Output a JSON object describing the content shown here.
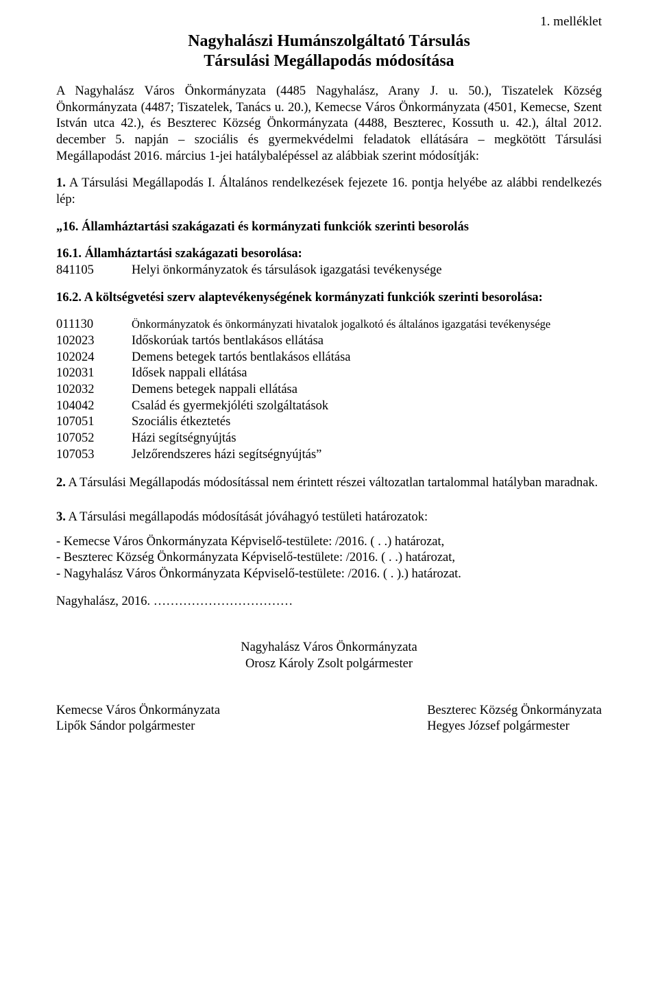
{
  "annex": "1. melléklet",
  "title_line1": "Nagyhalászi Humánszolgáltató Társulás",
  "title_line2": "Társulási Megállapodás módosítása",
  "intro": "A Nagyhalász Város Önkormányzata (4485 Nagyhalász, Arany J. u. 50.), Tiszatelek Község Önkormányzata (4487; Tiszatelek, Tanács u. 20.), Kemecse Város Önkormányzata (4501, Kemecse, Szent István utca 42.), és Beszterec Község Önkormányzata (4488, Beszterec, Kossuth u. 42.), által 2012. december 5. napján – szociális és gyermekvédelmi feladatok ellátására – megkötött Társulási Megállapodást 2016. március 1-jei hatálybalépéssel az alábbiak szerint módosítják:",
  "p1_prefix": "1.",
  "p1_text": " A Társulási Megállapodás I. Általános rendelkezések fejezete 16. pontja helyébe az alábbi rendelkezés lép:",
  "q16": "„16. Államháztartási szakágazati és kormányzati funkciók szerinti besorolás",
  "s161_head": "16.1. Államháztartási szakágazati besorolása:",
  "s161_code": "841105",
  "s161_desc": "Helyi önkormányzatok és társulások igazgatási tevékenysége",
  "s162_head_a": "16.2.  A  költségvetési  szerv  alaptevékenységének  kormányzati  funkciók  szerinti besorolása:",
  "rows": [
    {
      "code": "011130",
      "desc": "Önkormányzatok és önkormányzati hivatalok jogalkotó és általános igazgatási tevékenysége",
      "small": true
    },
    {
      "code": "102023",
      "desc": "Időskorúak tartós bentlakásos ellátása"
    },
    {
      "code": "102024",
      "desc": "Demens betegek tartós bentlakásos ellátása"
    },
    {
      "code": "102031",
      "desc": "Idősek nappali ellátása"
    },
    {
      "code": "102032",
      "desc": "Demens betegek nappali ellátása"
    },
    {
      "code": "104042",
      "desc": "Család és gyermekjóléti szolgáltatások"
    },
    {
      "code": "107051",
      "desc": "Szociális étkeztetés"
    },
    {
      "code": "107052",
      "desc": "Házi segítségnyújtás"
    },
    {
      "code": "107053",
      "desc": "Jelzőrendszeres házi segítségnyújtás”"
    }
  ],
  "p2_prefix": "2.",
  "p2_text": " A Társulási Megállapodás módosítással nem érintett részei változatlan tartalommal hatályban maradnak.",
  "p3_prefix": "3.",
  "p3_text": " A Társulási megállapodás módosítását jóváhagyó testületi határozatok:",
  "dec1": "- Kemecse Város Önkormányzata Képviselő-testülete:   /2016. ( .   .) határozat,",
  "dec2": "- Beszterec Község Önkormányzata Képviselő-testülete:   /2016. ( .   .) határozat,",
  "dec3": "- Nagyhalász Város Önkormányzata Képviselő-testülete:   /2016. ( .   ).) határozat.",
  "dated": "Nagyhalász, 2016. ……………………………",
  "sig_main_1": "Nagyhalász Város Önkormányzata",
  "sig_main_2": "Orosz Károly Zsolt polgármester",
  "sig_l1": "Kemecse Város Önkormányzata",
  "sig_l2": "Lipők Sándor polgármester",
  "sig_r1": "Beszterec Község Önkormányzata",
  "sig_r2": "Hegyes József polgármester"
}
